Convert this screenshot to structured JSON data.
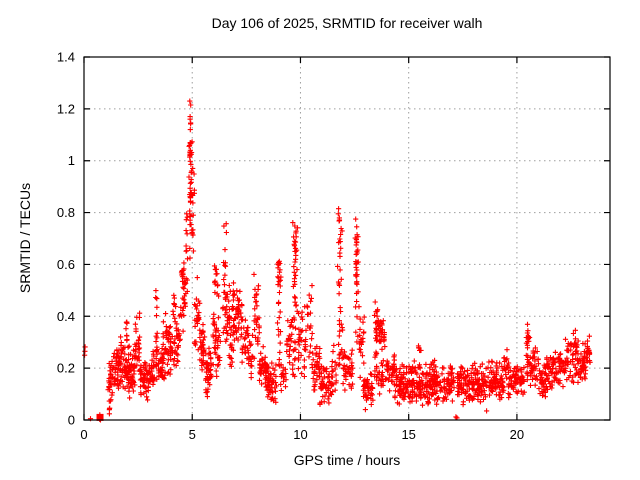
{
  "window": {
    "title": "Day 106 of 2025, SRMTID for receiver walh"
  },
  "chart_data": {
    "type": "scatter",
    "title": "Day 106 of 2025, SRMTID for receiver walh",
    "xlabel": "GPS time / hours",
    "ylabel": "SRMTID / TECUs",
    "xlim": [
      0,
      24.3
    ],
    "ylim": [
      0,
      1.4
    ],
    "xticks": [
      0,
      5,
      10,
      15,
      20
    ],
    "xtick_labels": [
      "0",
      "5",
      "10",
      "15",
      "20"
    ],
    "yticks": [
      0,
      0.2,
      0.4,
      0.6,
      0.8,
      1.0,
      1.2,
      1.4
    ],
    "ytick_labels": [
      "0",
      "0.2",
      "0.4",
      "0.6",
      "0.8",
      "1",
      "1.2",
      "1.4"
    ],
    "grid": true,
    "legend": "none",
    "marker": {
      "shape": "plus",
      "color": "#ff0000",
      "size": 5
    },
    "grid_color": "#9e9e9e",
    "axis_color": "#000000",
    "background": "#ffffff",
    "cluster_fields": [
      "t_start",
      "t_end",
      "v_min",
      "v_max",
      "n_points",
      "shape(b=band,c=column)"
    ],
    "clusters": [
      [
        0.7,
        0.78,
        0.0,
        0.02,
        8,
        "c"
      ],
      [
        1.1,
        1.45,
        0.07,
        0.27,
        40,
        "b"
      ],
      [
        1.15,
        1.25,
        0.02,
        0.08,
        6,
        "c"
      ],
      [
        1.45,
        1.8,
        0.1,
        0.33,
        48,
        "b"
      ],
      [
        1.8,
        2.1,
        0.1,
        0.3,
        40,
        "b"
      ],
      [
        1.93,
        2.0,
        0.28,
        0.38,
        8,
        "c"
      ],
      [
        2.1,
        2.35,
        0.08,
        0.28,
        35,
        "b"
      ],
      [
        2.35,
        2.6,
        0.12,
        0.44,
        32,
        "b"
      ],
      [
        2.6,
        3.0,
        0.06,
        0.26,
        45,
        "b"
      ],
      [
        3.0,
        3.25,
        0.1,
        0.28,
        30,
        "b"
      ],
      [
        3.28,
        3.42,
        0.15,
        0.53,
        20,
        "c"
      ],
      [
        3.42,
        3.65,
        0.1,
        0.3,
        28,
        "b"
      ],
      [
        3.65,
        3.85,
        0.15,
        0.43,
        26,
        "b"
      ],
      [
        3.85,
        4.1,
        0.15,
        0.38,
        28,
        "b"
      ],
      [
        4.1,
        4.25,
        0.2,
        0.5,
        18,
        "c"
      ],
      [
        4.25,
        4.45,
        0.2,
        0.45,
        20,
        "b"
      ],
      [
        4.45,
        4.7,
        0.3,
        0.62,
        22,
        "b"
      ],
      [
        4.5,
        4.62,
        0.53,
        0.63,
        10,
        "b"
      ],
      [
        4.7,
        4.82,
        0.45,
        0.8,
        13,
        "c"
      ],
      [
        4.82,
        5.02,
        0.58,
        1.18,
        26,
        "c"
      ],
      [
        4.86,
        4.94,
        1.0,
        1.07,
        7,
        "c"
      ],
      [
        4.88,
        4.95,
        0.84,
        0.9,
        6,
        "c"
      ],
      [
        4.86,
        4.92,
        0.77,
        0.81,
        5,
        "c"
      ],
      [
        4.95,
        5.05,
        0.7,
        0.76,
        5,
        "c"
      ],
      [
        5.0,
        5.12,
        0.55,
        1.0,
        8,
        "c"
      ],
      [
        5.1,
        5.35,
        0.22,
        0.55,
        26,
        "b"
      ],
      [
        5.35,
        5.6,
        0.15,
        0.38,
        32,
        "b"
      ],
      [
        5.6,
        5.9,
        0.08,
        0.3,
        38,
        "b"
      ],
      [
        5.95,
        6.1,
        0.2,
        0.45,
        18,
        "b"
      ],
      [
        6.02,
        6.22,
        0.45,
        0.63,
        15,
        "b"
      ],
      [
        6.1,
        6.3,
        0.15,
        0.4,
        18,
        "b"
      ],
      [
        6.4,
        6.6,
        0.3,
        0.76,
        24,
        "c"
      ],
      [
        6.55,
        7.0,
        0.3,
        0.56,
        44,
        "b"
      ],
      [
        6.7,
        7.0,
        0.2,
        0.35,
        16,
        "b"
      ],
      [
        7.0,
        7.3,
        0.28,
        0.55,
        34,
        "b"
      ],
      [
        7.3,
        7.6,
        0.15,
        0.42,
        24,
        "b"
      ],
      [
        7.6,
        7.8,
        0.15,
        0.35,
        16,
        "b"
      ],
      [
        7.85,
        8.1,
        0.2,
        0.6,
        28,
        "b"
      ],
      [
        8.1,
        8.4,
        0.1,
        0.3,
        36,
        "b"
      ],
      [
        8.4,
        8.9,
        0.05,
        0.25,
        55,
        "b"
      ],
      [
        8.92,
        9.12,
        0.25,
        0.63,
        18,
        "c"
      ],
      [
        8.95,
        9.1,
        0.54,
        0.62,
        9,
        "b"
      ],
      [
        9.0,
        9.35,
        0.1,
        0.25,
        20,
        "b"
      ],
      [
        9.35,
        9.6,
        0.15,
        0.42,
        20,
        "b"
      ],
      [
        9.6,
        9.9,
        0.35,
        0.77,
        38,
        "c"
      ],
      [
        9.62,
        9.8,
        0.15,
        0.33,
        12,
        "b"
      ],
      [
        9.9,
        10.3,
        0.15,
        0.45,
        32,
        "b"
      ],
      [
        10.3,
        10.55,
        0.2,
        0.55,
        20,
        "b"
      ],
      [
        10.55,
        10.9,
        0.08,
        0.3,
        36,
        "b"
      ],
      [
        10.9,
        11.45,
        0.05,
        0.22,
        50,
        "b"
      ],
      [
        11.45,
        11.68,
        0.1,
        0.3,
        16,
        "b"
      ],
      [
        11.7,
        11.95,
        0.35,
        0.8,
        26,
        "c"
      ],
      [
        11.75,
        11.95,
        0.15,
        0.35,
        12,
        "b"
      ],
      [
        11.95,
        12.2,
        0.1,
        0.28,
        20,
        "b"
      ],
      [
        12.2,
        12.48,
        0.1,
        0.3,
        20,
        "b"
      ],
      [
        12.5,
        12.75,
        0.3,
        0.75,
        24,
        "c"
      ],
      [
        12.52,
        12.64,
        0.52,
        0.62,
        10,
        "c"
      ],
      [
        12.7,
        12.95,
        0.15,
        0.45,
        20,
        "b"
      ],
      [
        12.9,
        13.35,
        0.05,
        0.2,
        40,
        "b"
      ],
      [
        13.38,
        13.6,
        0.15,
        0.47,
        24,
        "c"
      ],
      [
        13.5,
        13.9,
        0.24,
        0.43,
        34,
        "b"
      ],
      [
        13.6,
        14.0,
        0.1,
        0.25,
        22,
        "b"
      ],
      [
        14.0,
        14.35,
        0.08,
        0.26,
        32,
        "b"
      ],
      [
        14.35,
        15.1,
        0.05,
        0.22,
        80,
        "b"
      ],
      [
        15.1,
        15.6,
        0.06,
        0.24,
        55,
        "b"
      ],
      [
        15.45,
        15.58,
        0.24,
        0.31,
        6,
        "b"
      ],
      [
        15.6,
        16.1,
        0.05,
        0.22,
        55,
        "b"
      ],
      [
        16.08,
        16.25,
        0.1,
        0.28,
        13,
        "b"
      ],
      [
        16.1,
        17.1,
        0.05,
        0.22,
        90,
        "b"
      ],
      [
        17.25,
        18.0,
        0.05,
        0.22,
        78,
        "b"
      ],
      [
        18.0,
        18.6,
        0.06,
        0.23,
        62,
        "b"
      ],
      [
        18.6,
        19.4,
        0.06,
        0.24,
        78,
        "b"
      ],
      [
        19.4,
        19.6,
        0.12,
        0.29,
        16,
        "b"
      ],
      [
        19.6,
        19.95,
        0.07,
        0.23,
        32,
        "b"
      ],
      [
        19.95,
        20.35,
        0.08,
        0.25,
        36,
        "b"
      ],
      [
        20.38,
        20.6,
        0.15,
        0.39,
        24,
        "c"
      ],
      [
        20.6,
        21.0,
        0.1,
        0.3,
        36,
        "b"
      ],
      [
        21.0,
        21.35,
        0.07,
        0.24,
        32,
        "b"
      ],
      [
        21.35,
        21.65,
        0.1,
        0.26,
        28,
        "b"
      ],
      [
        21.65,
        22.2,
        0.1,
        0.28,
        50,
        "b"
      ],
      [
        22.2,
        22.8,
        0.13,
        0.35,
        60,
        "b"
      ],
      [
        22.8,
        23.2,
        0.12,
        0.32,
        46,
        "b"
      ],
      [
        23.2,
        23.38,
        0.18,
        0.33,
        18,
        "b"
      ]
    ],
    "points": [
      [
        0.03,
        0.25
      ],
      [
        0.04,
        0.265
      ],
      [
        0.05,
        0.282
      ],
      [
        0.3,
        0.005
      ],
      [
        4.89,
        1.23
      ],
      [
        4.93,
        1.215
      ],
      [
        4.9,
        1.17
      ],
      [
        4.91,
        1.12
      ],
      [
        11.76,
        0.815
      ],
      [
        11.8,
        0.77
      ],
      [
        12.55,
        0.775
      ],
      [
        12.6,
        0.745
      ],
      [
        13.0,
        0.04
      ],
      [
        17.18,
        0.012
      ],
      [
        17.23,
        0.008
      ],
      [
        18.6,
        0.035
      ]
    ],
    "square_marker_point": [
      0.74,
      0.01
    ]
  }
}
